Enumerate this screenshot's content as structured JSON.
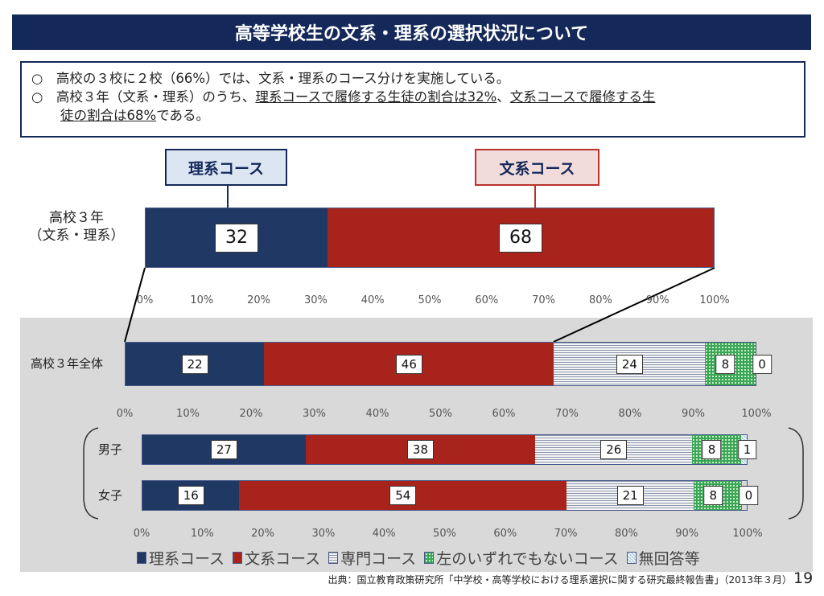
{
  "title": "高等学校生の文系・理系の選択状況について",
  "info": {
    "line1": "○　高校の３校に２校（66%）では、文系・理系のコース分けを実施している。",
    "line2_pre": "○　高校３年（文系・理系）のうち、",
    "line2_u1": "理系コースで履修する生徒の割合は32%",
    "line2_mid": "、",
    "line2_u2a": "文系コースで履修する生",
    "line3_u2b": "徒の割合は68%",
    "line3_post": "である。"
  },
  "callouts": {
    "rikei": "理系コース",
    "bunkei": "文系コース"
  },
  "colors": {
    "rikei": "#1f3864",
    "bunkei": "#a8231c",
    "senmon": "#8a95ad",
    "neither": "#3aa655",
    "noanswer": "#9fc5d8",
    "title_bg": "#14285a"
  },
  "chart_data": [
    {
      "type": "bar",
      "orientation": "horizontal-stacked-100",
      "categories": [
        "高校３年\n（文系・理系）"
      ],
      "category_lines": [
        "高校３年",
        "（文系・理系）"
      ],
      "series": [
        {
          "name": "理系コース",
          "values": [
            32
          ]
        },
        {
          "name": "文系コース",
          "values": [
            68
          ]
        }
      ],
      "xlim": [
        0,
        100
      ],
      "ticks": [
        "0%",
        "10%",
        "20%",
        "30%",
        "40%",
        "50%",
        "60%",
        "70%",
        "80%",
        "90%",
        "100%"
      ]
    },
    {
      "type": "bar",
      "orientation": "horizontal-stacked-100",
      "categories": [
        "高校３年全体"
      ],
      "series": [
        {
          "name": "理系コース",
          "values": [
            22
          ]
        },
        {
          "name": "文系コース",
          "values": [
            46
          ]
        },
        {
          "name": "専門コース",
          "values": [
            24
          ]
        },
        {
          "name": "左のいずれでもないコース",
          "values": [
            8
          ]
        },
        {
          "name": "無回答等",
          "values": [
            0
          ]
        }
      ],
      "xlim": [
        0,
        100
      ],
      "ticks": [
        "0%",
        "10%",
        "20%",
        "30%",
        "40%",
        "50%",
        "60%",
        "70%",
        "80%",
        "90%",
        "100%"
      ]
    },
    {
      "type": "bar",
      "orientation": "horizontal-stacked-100",
      "categories": [
        "男子",
        "女子"
      ],
      "series": [
        {
          "name": "理系コース",
          "values": [
            27,
            16
          ]
        },
        {
          "name": "文系コース",
          "values": [
            38,
            54
          ]
        },
        {
          "name": "専門コース",
          "values": [
            26,
            21
          ]
        },
        {
          "name": "左のいずれでもないコース",
          "values": [
            8,
            8
          ]
        },
        {
          "name": "無回答等",
          "values": [
            1,
            0
          ]
        }
      ],
      "xlim": [
        0,
        100
      ],
      "ticks": [
        "0%",
        "10%",
        "20%",
        "30%",
        "40%",
        "50%",
        "60%",
        "70%",
        "80%",
        "90%",
        "100%"
      ],
      "legend": "bottom"
    }
  ],
  "legend": [
    "理系コース",
    "文系コース",
    "専門コース",
    "左のいずれでもないコース",
    "無回答等"
  ],
  "source": "出典：国立教育政策研究所「中学校・高等学校における理系選択に関する研究最終報告書」（2013年３月）",
  "page_number": "19"
}
